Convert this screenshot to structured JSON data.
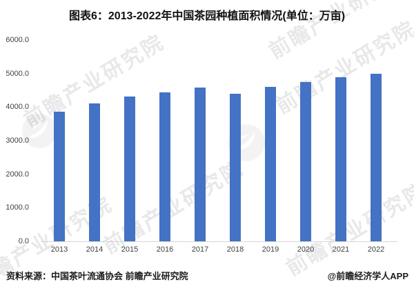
{
  "title": "图表6：2013-2022年中国茶园种植面积情况(单位：万亩)",
  "chart_data": {
    "type": "bar",
    "title": "图表6：2013-2022年中国茶园种植面积情况",
    "unit": "万亩",
    "categories": [
      "2013",
      "2014",
      "2015",
      "2016",
      "2017",
      "2018",
      "2019",
      "2020",
      "2021",
      "2022"
    ],
    "values": [
      3869,
      4112,
      4316,
      4448,
      4588,
      4396,
      4598,
      4748,
      4896,
      4995
    ],
    "ylim": [
      0,
      6000
    ],
    "ytick_values": [
      0,
      1000,
      2000,
      3000,
      4000,
      5000,
      6000
    ],
    "ytick_labels": [
      "0.0",
      "1000.0",
      "2000.0",
      "3000.0",
      "4000.0",
      "5000.0",
      "6000.0"
    ],
    "grid": false,
    "legend_position": "none",
    "bar_color": "#4472C4"
  },
  "footer": {
    "source": "资料来源：中国茶叶流通协会 前瞻产业研究院",
    "credit": "@前瞻经济学人APP"
  },
  "watermark": {
    "text": "前瞻产业研究院"
  },
  "colors": {
    "bar": "#4472C4",
    "title_text": "#111111",
    "axis_text": "#3f3f3f",
    "axis_line": "#d6d6d6",
    "watermark_text": "rgba(110,110,110,0.16)"
  }
}
